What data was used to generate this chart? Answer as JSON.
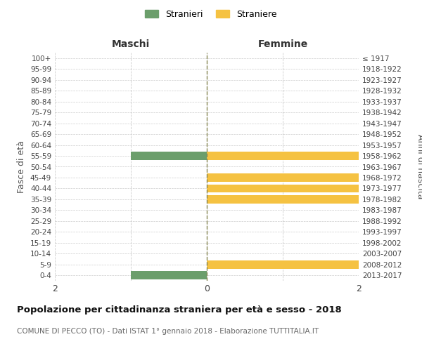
{
  "age_groups": [
    "100+",
    "95-99",
    "90-94",
    "85-89",
    "80-84",
    "75-79",
    "70-74",
    "65-69",
    "60-64",
    "55-59",
    "50-54",
    "45-49",
    "40-44",
    "35-39",
    "30-34",
    "25-29",
    "20-24",
    "15-19",
    "10-14",
    "5-9",
    "0-4"
  ],
  "birth_years": [
    "≤ 1917",
    "1918-1922",
    "1923-1927",
    "1928-1932",
    "1933-1937",
    "1938-1942",
    "1943-1947",
    "1948-1952",
    "1953-1957",
    "1958-1962",
    "1963-1967",
    "1968-1972",
    "1973-1977",
    "1978-1982",
    "1983-1987",
    "1988-1992",
    "1993-1997",
    "1998-2002",
    "2003-2007",
    "2008-2012",
    "2013-2017"
  ],
  "males": [
    0,
    0,
    0,
    0,
    0,
    0,
    0,
    0,
    0,
    1,
    0,
    0,
    0,
    0,
    0,
    0,
    0,
    0,
    0,
    0,
    1
  ],
  "females": [
    0,
    0,
    0,
    0,
    0,
    0,
    0,
    0,
    0,
    2,
    0,
    2,
    2,
    2,
    0,
    0,
    0,
    0,
    0,
    2,
    0
  ],
  "male_color": "#6b9e6b",
  "female_color": "#f5c242",
  "title": "Popolazione per cittadinanza straniera per età e sesso - 2018",
  "subtitle": "COMUNE DI PECCO (TO) - Dati ISTAT 1° gennaio 2018 - Elaborazione TUTTITALIA.IT",
  "left_label": "Maschi",
  "right_label": "Femmine",
  "y_left_label": "Fasce di età",
  "y_right_label": "Anni di nascita",
  "legend_male": "Stranieri",
  "legend_female": "Straniere",
  "xlim": 2,
  "xticks": [
    -2,
    0,
    2
  ],
  "xticklabels": [
    "2",
    "0",
    "2"
  ],
  "background_color": "#ffffff",
  "grid_color": "#cccccc",
  "zeroline_color": "#888855"
}
